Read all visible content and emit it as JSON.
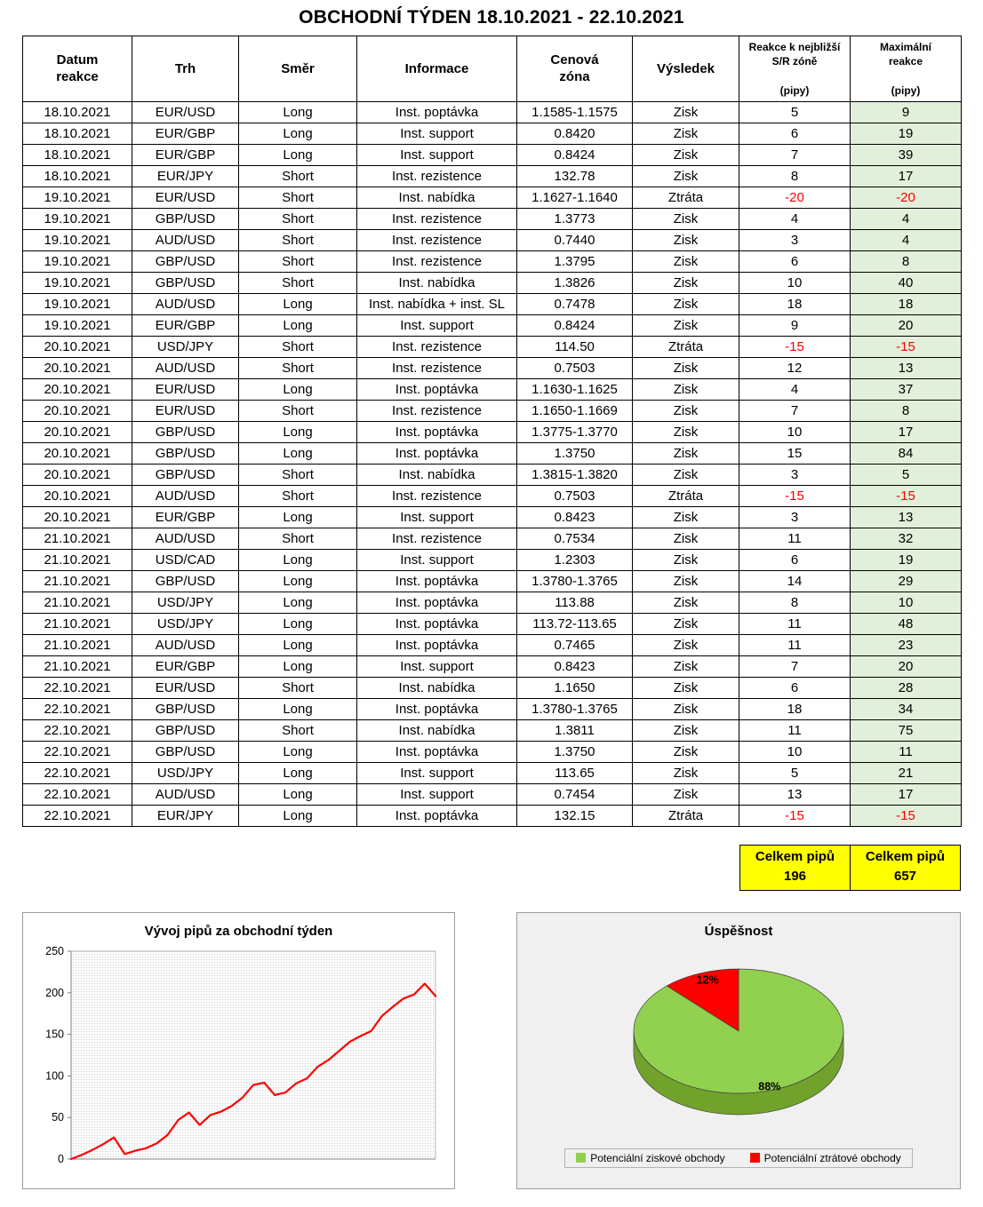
{
  "title": "OBCHODNÍ TÝDEN 18.10.2021 - 22.10.2021",
  "table": {
    "headers": [
      "Datum\nreakce",
      "Trh",
      "Směr",
      "Informace",
      "Cenová\nzóna",
      "Výsledek",
      "Reakce k nejbližší\nS/R zóně\n\n(pipy)",
      "Maximální\nreakce\n\n(pipy)"
    ],
    "rows": [
      [
        "18.10.2021",
        "EUR/USD",
        "Long",
        "Inst. poptávka",
        "1.1585-1.1575",
        "Zisk",
        5,
        9
      ],
      [
        "18.10.2021",
        "EUR/GBP",
        "Long",
        "Inst. support",
        "0.8420",
        "Zisk",
        6,
        19
      ],
      [
        "18.10.2021",
        "EUR/GBP",
        "Long",
        "Inst. support",
        "0.8424",
        "Zisk",
        7,
        39
      ],
      [
        "18.10.2021",
        "EUR/JPY",
        "Short",
        "Inst. rezistence",
        "132.78",
        "Zisk",
        8,
        17
      ],
      [
        "19.10.2021",
        "EUR/USD",
        "Short",
        "Inst. nabídka",
        "1.1627-1.1640",
        "Ztráta",
        -20,
        -20
      ],
      [
        "19.10.2021",
        "GBP/USD",
        "Short",
        "Inst. rezistence",
        "1.3773",
        "Zisk",
        4,
        4
      ],
      [
        "19.10.2021",
        "AUD/USD",
        "Short",
        "Inst. rezistence",
        "0.7440",
        "Zisk",
        3,
        4
      ],
      [
        "19.10.2021",
        "GBP/USD",
        "Short",
        "Inst. rezistence",
        "1.3795",
        "Zisk",
        6,
        8
      ],
      [
        "19.10.2021",
        "GBP/USD",
        "Short",
        "Inst. nabídka",
        "1.3826",
        "Zisk",
        10,
        40
      ],
      [
        "19.10.2021",
        "AUD/USD",
        "Long",
        "Inst. nabídka + inst. SL",
        "0.7478",
        "Zisk",
        18,
        18
      ],
      [
        "19.10.2021",
        "EUR/GBP",
        "Long",
        "Inst. support",
        "0.8424",
        "Zisk",
        9,
        20
      ],
      [
        "20.10.2021",
        "USD/JPY",
        "Short",
        "Inst. rezistence",
        "114.50",
        "Ztráta",
        -15,
        -15
      ],
      [
        "20.10.2021",
        "AUD/USD",
        "Short",
        "Inst. rezistence",
        "0.7503",
        "Zisk",
        12,
        13
      ],
      [
        "20.10.2021",
        "EUR/USD",
        "Long",
        "Inst. poptávka",
        "1.1630-1.1625",
        "Zisk",
        4,
        37
      ],
      [
        "20.10.2021",
        "EUR/USD",
        "Short",
        "Inst. rezistence",
        "1.1650-1.1669",
        "Zisk",
        7,
        8
      ],
      [
        "20.10.2021",
        "GBP/USD",
        "Long",
        "Inst. poptávka",
        "1.3775-1.3770",
        "Zisk",
        10,
        17
      ],
      [
        "20.10.2021",
        "GBP/USD",
        "Long",
        "Inst. poptávka",
        "1.3750",
        "Zisk",
        15,
        84
      ],
      [
        "20.10.2021",
        "GBP/USD",
        "Short",
        "Inst. nabídka",
        "1.3815-1.3820",
        "Zisk",
        3,
        5
      ],
      [
        "20.10.2021",
        "AUD/USD",
        "Short",
        "Inst. rezistence",
        "0.7503",
        "Ztráta",
        -15,
        -15
      ],
      [
        "20.10.2021",
        "EUR/GBP",
        "Long",
        "Inst. support",
        "0.8423",
        "Zisk",
        3,
        13
      ],
      [
        "21.10.2021",
        "AUD/USD",
        "Short",
        "Inst. rezistence",
        "0.7534",
        "Zisk",
        11,
        32
      ],
      [
        "21.10.2021",
        "USD/CAD",
        "Long",
        "Inst. support",
        "1.2303",
        "Zisk",
        6,
        19
      ],
      [
        "21.10.2021",
        "GBP/USD",
        "Long",
        "Inst. poptávka",
        "1.3780-1.3765",
        "Zisk",
        14,
        29
      ],
      [
        "21.10.2021",
        "USD/JPY",
        "Long",
        "Inst. poptávka",
        "113.88",
        "Zisk",
        8,
        10
      ],
      [
        "21.10.2021",
        "USD/JPY",
        "Long",
        "Inst. poptávka",
        "113.72-113.65",
        "Zisk",
        11,
        48
      ],
      [
        "21.10.2021",
        "AUD/USD",
        "Long",
        "Inst. poptávka",
        "0.7465",
        "Zisk",
        11,
        23
      ],
      [
        "21.10.2021",
        "EUR/GBP",
        "Long",
        "Inst. support",
        "0.8423",
        "Zisk",
        7,
        20
      ],
      [
        "22.10.2021",
        "EUR/USD",
        "Short",
        "Inst. nabídka",
        "1.1650",
        "Zisk",
        6,
        28
      ],
      [
        "22.10.2021",
        "GBP/USD",
        "Long",
        "Inst. poptávka",
        "1.3780-1.3765",
        "Zisk",
        18,
        34
      ],
      [
        "22.10.2021",
        "GBP/USD",
        "Short",
        "Inst. nabídka",
        "1.3811",
        "Zisk",
        11,
        75
      ],
      [
        "22.10.2021",
        "GBP/USD",
        "Long",
        "Inst. poptávka",
        "1.3750",
        "Zisk",
        10,
        11
      ],
      [
        "22.10.2021",
        "USD/JPY",
        "Long",
        "Inst. support",
        "113.65",
        "Zisk",
        5,
        21
      ],
      [
        "22.10.2021",
        "AUD/USD",
        "Long",
        "Inst. support",
        "0.7454",
        "Zisk",
        13,
        17
      ],
      [
        "22.10.2021",
        "EUR/JPY",
        "Long",
        "Inst. poptávka",
        "132.15",
        "Ztráta",
        -15,
        -15
      ]
    ],
    "negative_color": "#ff0000",
    "max_column_bg": "#e2efda"
  },
  "summary": [
    {
      "label": "Celkem pipů",
      "value": "196",
      "bg": "#ffff00"
    },
    {
      "label": "Celkem pipů",
      "value": "657",
      "bg": "#ffff00"
    }
  ],
  "chart_data": [
    {
      "type": "line",
      "title": "Vývoj pipů za obchodní týden",
      "values": [
        0,
        5,
        11,
        18,
        26,
        6,
        10,
        13,
        19,
        29,
        47,
        56,
        41,
        53,
        57,
        64,
        74,
        89,
        92,
        77,
        80,
        91,
        97,
        111,
        119,
        130,
        141,
        148,
        154,
        172,
        183,
        193,
        198,
        211,
        196
      ],
      "ylim": [
        0,
        250
      ],
      "yticks": [
        0,
        50,
        100,
        150,
        200,
        250
      ],
      "xlabel": "",
      "ylabel": "",
      "grid": false,
      "legend": "none",
      "line_color": "#ff0000"
    },
    {
      "type": "pie",
      "title": "Úspěšnost",
      "labels": [
        "Potenciální ziskové obchody",
        "Potenciální ztrátové obchody"
      ],
      "values": [
        88,
        12
      ],
      "data_labels": [
        "88%",
        "12%"
      ],
      "colors": [
        "#92d050",
        "#ff0000"
      ],
      "side_colors": [
        "#71a22b",
        "#aa0000"
      ],
      "legend_position": "bottom"
    }
  ]
}
